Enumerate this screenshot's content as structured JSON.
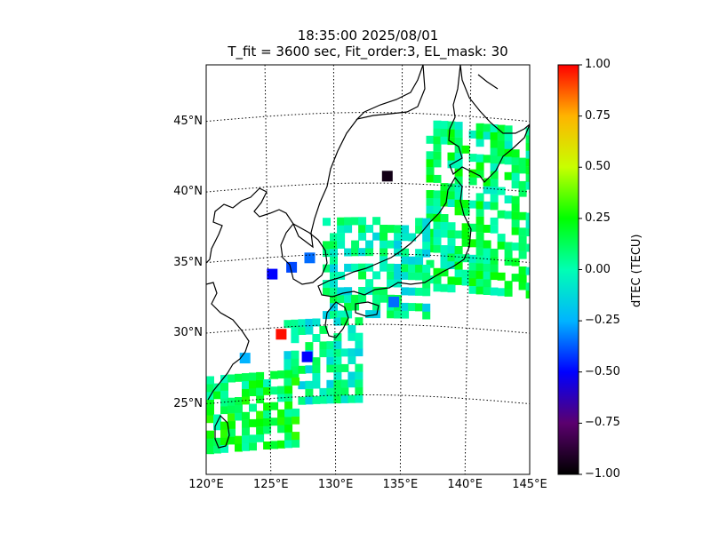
{
  "title": {
    "line1": "18:35:00 2025/08/01",
    "line2": "T_fit = 3600 sec, Fit_order:3, EL_mask: 30"
  },
  "map": {
    "lon_range": [
      120,
      145
    ],
    "lat_range": [
      20,
      49
    ],
    "lat_labels": [
      {
        "lat": 45,
        "text": "45°N"
      },
      {
        "lat": 40,
        "text": "40°N"
      },
      {
        "lat": 35,
        "text": "35°N"
      },
      {
        "lat": 30,
        "text": "30°N"
      },
      {
        "lat": 25,
        "text": "25°N"
      }
    ],
    "lon_labels": [
      {
        "lon": 120,
        "text": "120°E"
      },
      {
        "lon": 125,
        "text": "125°E"
      },
      {
        "lon": 130,
        "text": "130°E"
      },
      {
        "lon": 135,
        "text": "135°E"
      },
      {
        "lon": 140,
        "text": "140°E"
      },
      {
        "lon": 145,
        "text": "145°E"
      }
    ]
  },
  "colorbar": {
    "label": "dTEC (TECU)",
    "range": [
      -1.0,
      1.0
    ],
    "ticks": [
      {
        "value": 1.0,
        "text": "1.00"
      },
      {
        "value": 0.75,
        "text": "0.75"
      },
      {
        "value": 0.5,
        "text": "0.50"
      },
      {
        "value": 0.25,
        "text": "0.25"
      },
      {
        "value": 0.0,
        "text": "0.00"
      },
      {
        "value": -0.25,
        "text": "−0.25"
      },
      {
        "value": -0.5,
        "text": "−0.50"
      },
      {
        "value": -0.75,
        "text": "−0.75"
      },
      {
        "value": -1.0,
        "text": "−1.00"
      }
    ],
    "colors": [
      "#000000",
      "#5b006e",
      "#0000ff",
      "#00b4ff",
      "#00ffb4",
      "#00ff00",
      "#c8ff00",
      "#ffb400",
      "#ff0000"
    ]
  },
  "chart_data": {
    "type": "heatmap",
    "z_name": "dTEC (TECU)",
    "x_unit": "°E",
    "y_unit": "°N",
    "z_range": [
      -1.0,
      1.0
    ],
    "regions": [
      {
        "lon": [
          137,
          145
        ],
        "lat": [
          33,
          45
        ],
        "dtec": 0.1
      },
      {
        "lon": [
          129,
          137
        ],
        "lat": [
          31,
          38
        ],
        "dtec": 0.0
      },
      {
        "lon": [
          126,
          132
        ],
        "lat": [
          25,
          31
        ],
        "dtec": 0.0
      },
      {
        "lon": [
          120,
          127
        ],
        "lat": [
          22,
          27
        ],
        "dtec": 0.15
      }
    ],
    "points": [
      {
        "lon": 125.8,
        "lat": 29.5,
        "dtec": 0.98
      },
      {
        "lon": 127.8,
        "lat": 27.8,
        "dtec": -0.5
      },
      {
        "lon": 125.1,
        "lat": 33.8,
        "dtec": -0.5
      },
      {
        "lon": 126.6,
        "lat": 34.2,
        "dtec": -0.4
      },
      {
        "lon": 134.0,
        "lat": 40.5,
        "dtec": -0.95
      },
      {
        "lon": 123.0,
        "lat": 28.0,
        "dtec": -0.25
      },
      {
        "lon": 128.0,
        "lat": 34.8,
        "dtec": -0.35
      },
      {
        "lon": 134.5,
        "lat": 31.6,
        "dtec": -0.35
      }
    ]
  }
}
